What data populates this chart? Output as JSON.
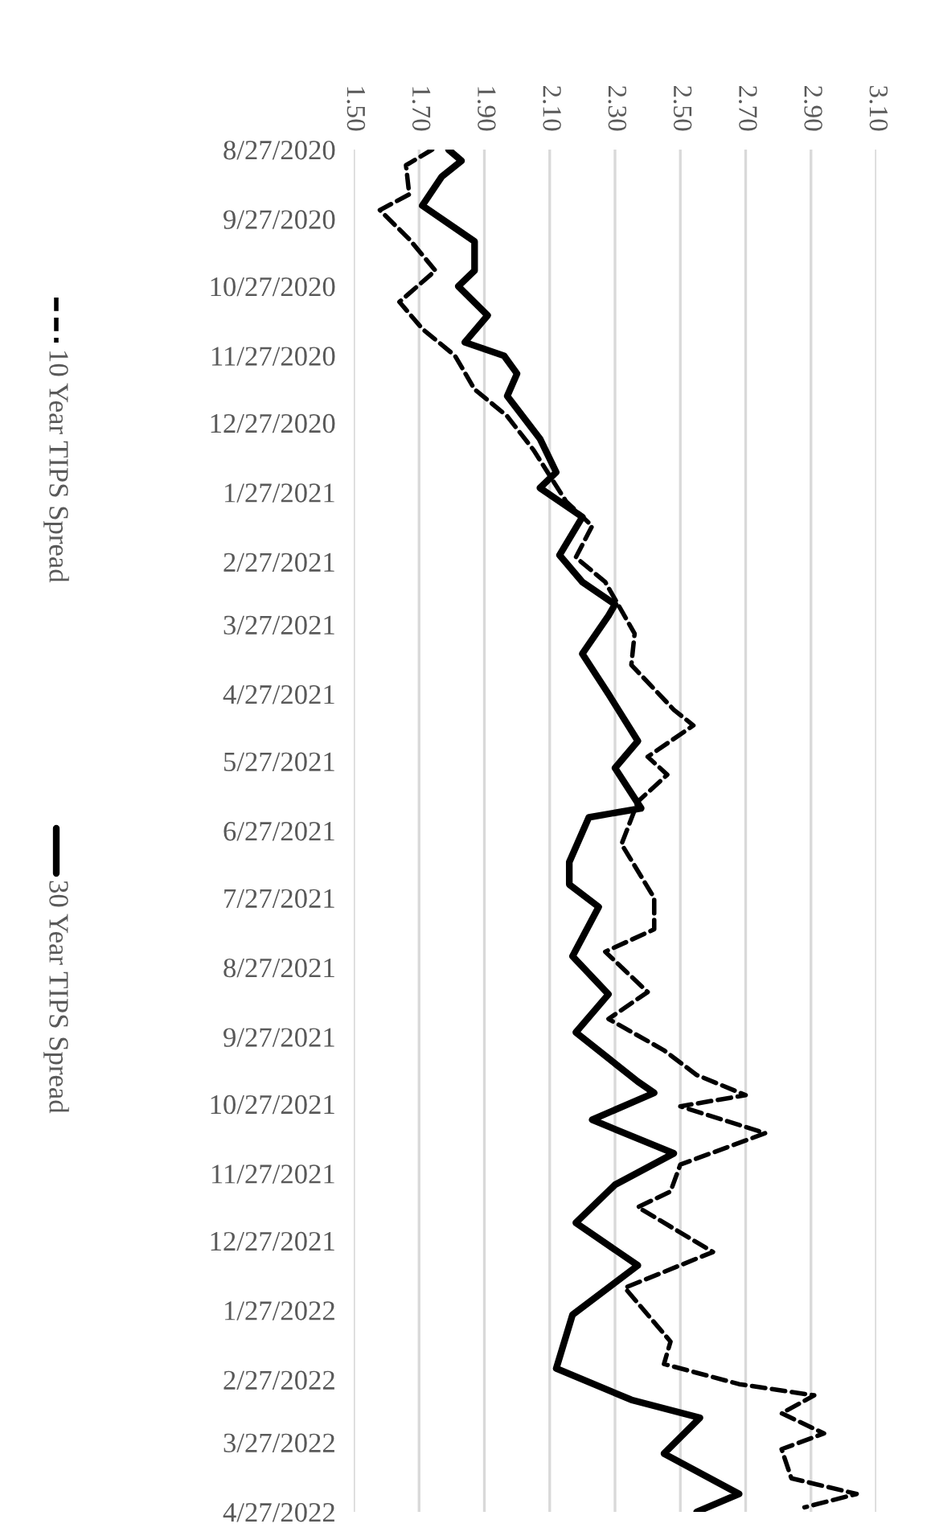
{
  "chart_data": {
    "type": "line",
    "orientation": "horizontal",
    "series": [
      {
        "name": "10 Year TIPS Spread",
        "color": "#000000",
        "line_style": "dashed",
        "x": [
          "2020-08-27",
          "2020-09-03",
          "2020-09-16",
          "2020-09-23",
          "2020-10-06",
          "2020-10-20",
          "2020-11-03",
          "2020-11-15",
          "2020-11-27",
          "2020-12-12",
          "2020-12-24",
          "2021-01-08",
          "2021-01-31",
          "2021-02-11",
          "2021-02-25",
          "2021-03-08",
          "2021-03-31",
          "2021-04-14",
          "2021-05-04",
          "2021-05-11",
          "2021-05-25",
          "2021-06-02",
          "2021-06-14",
          "2021-07-03",
          "2021-07-27",
          "2021-08-10",
          "2021-08-20",
          "2021-09-07",
          "2021-09-19",
          "2021-10-03",
          "2021-10-14",
          "2021-10-23",
          "2021-10-28",
          "2021-11-09",
          "2021-11-23",
          "2021-12-05",
          "2021-12-12",
          "2022-01-01",
          "2022-01-17",
          "2022-02-10",
          "2022-02-20",
          "2022-03-01",
          "2022-03-06",
          "2022-03-14",
          "2022-03-23",
          "2022-03-30",
          "2022-04-12",
          "2022-04-19",
          "2022-04-25"
        ],
        "values": [
          1.74,
          1.66,
          1.67,
          1.58,
          1.67,
          1.75,
          1.64,
          1.71,
          1.81,
          1.87,
          1.97,
          2.05,
          2.15,
          2.23,
          2.18,
          2.27,
          2.36,
          2.35,
          2.48,
          2.54,
          2.4,
          2.46,
          2.37,
          2.32,
          2.42,
          2.42,
          2.27,
          2.4,
          2.28,
          2.45,
          2.55,
          2.7,
          2.5,
          2.76,
          2.5,
          2.47,
          2.37,
          2.6,
          2.33,
          2.47,
          2.45,
          2.68,
          2.91,
          2.81,
          2.94,
          2.81,
          2.84,
          3.04,
          2.88
        ]
      },
      {
        "name": "30 Year TIPS Spread",
        "color": "#000000",
        "line_style": "solid",
        "x": [
          "2020-08-27",
          "2020-09-01",
          "2020-09-08",
          "2020-09-21",
          "2020-10-01",
          "2020-10-07",
          "2020-10-20",
          "2020-10-27",
          "2020-11-09",
          "2020-11-21",
          "2020-11-27",
          "2020-12-05",
          "2020-12-15",
          "2021-01-03",
          "2021-01-18",
          "2021-01-25",
          "2021-02-07",
          "2021-02-24",
          "2021-03-08",
          "2021-03-18",
          "2021-03-23",
          "2021-04-09",
          "2021-04-27",
          "2021-05-18",
          "2021-05-30",
          "2021-06-17",
          "2021-06-21",
          "2021-07-11",
          "2021-07-21",
          "2021-07-31",
          "2021-08-22",
          "2021-09-08",
          "2021-09-25",
          "2021-10-17",
          "2021-10-22",
          "2021-11-03",
          "2021-11-18",
          "2021-12-02",
          "2021-12-19",
          "2022-01-07",
          "2022-01-29",
          "2022-02-22",
          "2022-03-08",
          "2022-03-16",
          "2022-04-01",
          "2022-04-19",
          "2022-04-27"
        ],
        "values": [
          1.79,
          1.83,
          1.77,
          1.71,
          1.81,
          1.87,
          1.87,
          1.82,
          1.91,
          1.84,
          1.96,
          2.0,
          1.97,
          2.07,
          2.12,
          2.07,
          2.2,
          2.13,
          2.2,
          2.3,
          2.28,
          2.2,
          2.28,
          2.37,
          2.3,
          2.38,
          2.22,
          2.16,
          2.16,
          2.25,
          2.17,
          2.28,
          2.18,
          2.37,
          2.42,
          2.23,
          2.48,
          2.3,
          2.18,
          2.37,
          2.17,
          2.12,
          2.35,
          2.56,
          2.45,
          2.68,
          2.55
        ]
      }
    ],
    "xlim": [
      1.5,
      3.1
    ],
    "xticks": [
      {
        "value": 1.5,
        "label": "1.50"
      },
      {
        "value": 1.7,
        "label": "1.70"
      },
      {
        "value": 1.9,
        "label": "1.90"
      },
      {
        "value": 2.1,
        "label": "2.10"
      },
      {
        "value": 2.3,
        "label": "2.30"
      },
      {
        "value": 2.5,
        "label": "2.50"
      },
      {
        "value": 2.7,
        "label": "2.70"
      },
      {
        "value": 2.9,
        "label": "2.90"
      },
      {
        "value": 3.1,
        "label": "3.10"
      }
    ],
    "ylim": [
      "2022-04-27",
      "2020-08-27"
    ],
    "yticks": [
      {
        "value": "2020-08-27",
        "label": "8/27/2020"
      },
      {
        "value": "2020-09-27",
        "label": "9/27/2020"
      },
      {
        "value": "2020-10-27",
        "label": "10/27/2020"
      },
      {
        "value": "2020-11-27",
        "label": "11/27/2020"
      },
      {
        "value": "2020-12-27",
        "label": "12/27/2020"
      },
      {
        "value": "2021-01-27",
        "label": "1/27/2021"
      },
      {
        "value": "2021-02-27",
        "label": "2/27/2021"
      },
      {
        "value": "2021-03-27",
        "label": "3/27/2021"
      },
      {
        "value": "2021-04-27",
        "label": "4/27/2021"
      },
      {
        "value": "2021-05-27",
        "label": "5/27/2021"
      },
      {
        "value": "2021-06-27",
        "label": "6/27/2021"
      },
      {
        "value": "2021-07-27",
        "label": "7/27/2021"
      },
      {
        "value": "2021-08-27",
        "label": "8/27/2021"
      },
      {
        "value": "2021-09-27",
        "label": "9/27/2021"
      },
      {
        "value": "2021-10-27",
        "label": "10/27/2021"
      },
      {
        "value": "2021-11-27",
        "label": "11/27/2021"
      },
      {
        "value": "2021-12-27",
        "label": "12/27/2021"
      },
      {
        "value": "2022-01-27",
        "label": "1/27/2022"
      },
      {
        "value": "2022-02-27",
        "label": "2/27/2022"
      },
      {
        "value": "2022-03-27",
        "label": "3/27/2022"
      },
      {
        "value": "2022-04-27",
        "label": "4/27/2022"
      }
    ],
    "grid": "x",
    "legend": "left"
  }
}
